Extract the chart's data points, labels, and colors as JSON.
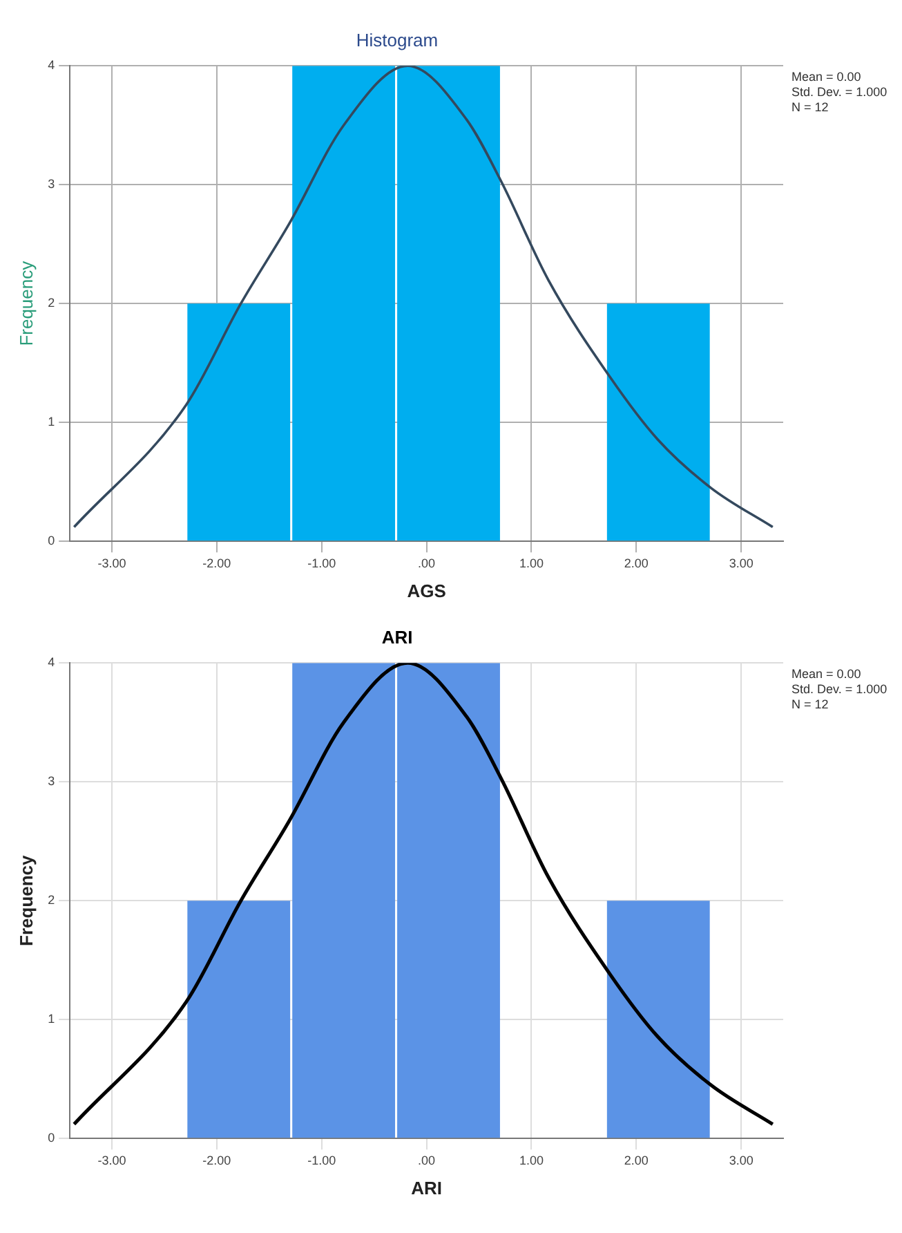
{
  "chart_data": [
    {
      "type": "histogram",
      "title": "Histogram",
      "xlabel": "AGS",
      "ylabel": "Frequency",
      "bins": [
        -2.29,
        -1.29,
        -0.29,
        0.71,
        1.71,
        2.71
      ],
      "values": [
        2,
        4,
        4,
        0,
        2
      ],
      "color": "#00aeef",
      "series": [
        {
          "type": "line",
          "color": "#34495e",
          "x": [
            -3.36,
            -2.29,
            -1.77,
            -1.31,
            -0.79,
            -0.18,
            0.38,
            0.71,
            1.16,
            1.75,
            2.2,
            2.71,
            3.3
          ],
          "values": [
            0.12,
            1.15,
            2.0,
            2.67,
            3.5,
            4.0,
            3.55,
            3.03,
            2.2,
            1.38,
            0.86,
            0.45,
            0.12
          ]
        }
      ],
      "xlim": [
        -3.4,
        3.4
      ],
      "xticks": [
        {
          "value": -3,
          "label": "-3.00"
        },
        {
          "value": -2,
          "label": "-2.00"
        },
        {
          "value": -1,
          "label": "-1.00"
        },
        {
          "value": 0,
          "label": ".00"
        },
        {
          "value": 1,
          "label": "1.00"
        },
        {
          "value": 2,
          "label": "2.00"
        },
        {
          "value": 3,
          "label": "3.00"
        }
      ],
      "ylim": [
        0,
        4
      ],
      "yticks": [
        0,
        1,
        2,
        3,
        4
      ],
      "grid": true,
      "annotations": [
        "Mean = 0.00",
        "Std. Dev. = 1.000",
        "N = 12"
      ]
    },
    {
      "type": "histogram",
      "title": "ARI",
      "xlabel": "ARI",
      "ylabel": "Frequency",
      "bins": [
        -2.29,
        -1.29,
        -0.29,
        0.71,
        1.71,
        2.71
      ],
      "values": [
        2,
        4,
        4,
        0,
        2
      ],
      "color": "#5b93e6",
      "series": [
        {
          "type": "line",
          "color": "#000000",
          "x": [
            -3.36,
            -2.29,
            -1.77,
            -1.31,
            -0.79,
            -0.18,
            0.38,
            0.71,
            1.16,
            1.75,
            2.2,
            2.71,
            3.3
          ],
          "values": [
            0.12,
            1.15,
            2.0,
            2.67,
            3.5,
            4.0,
            3.55,
            3.03,
            2.2,
            1.38,
            0.86,
            0.45,
            0.12
          ]
        }
      ],
      "xlim": [
        -3.4,
        3.4
      ],
      "xticks": [
        {
          "value": -3,
          "label": "-3.00"
        },
        {
          "value": -2,
          "label": "-2.00"
        },
        {
          "value": -1,
          "label": "-1.00"
        },
        {
          "value": 0,
          "label": ".00"
        },
        {
          "value": 1,
          "label": "1.00"
        },
        {
          "value": 2,
          "label": "2.00"
        },
        {
          "value": 3,
          "label": "3.00"
        }
      ],
      "ylim": [
        0,
        4
      ],
      "yticks": [
        0,
        1,
        2,
        3,
        4
      ],
      "grid": true,
      "annotations": [
        "Mean = 0.00",
        "Std. Dev. = 1.000",
        "N = 12"
      ]
    }
  ]
}
